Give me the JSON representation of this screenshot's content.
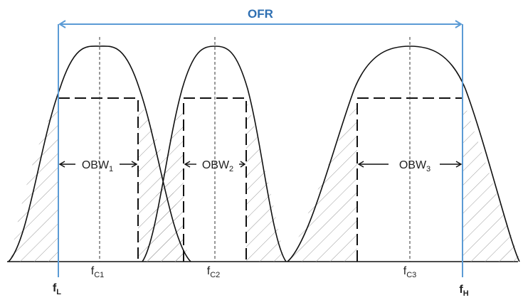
{
  "diagram": {
    "span_label": "OFR",
    "edge_low": {
      "main": "f",
      "sub": "L"
    },
    "edge_high": {
      "main": "f",
      "sub": "H"
    },
    "carriers": [
      {
        "center": {
          "main": "f",
          "sub": "C1"
        },
        "bandwidth": {
          "main": "OBW",
          "sub": "1"
        }
      },
      {
        "center": {
          "main": "f",
          "sub": "C2"
        },
        "bandwidth": {
          "main": "OBW",
          "sub": "2"
        }
      },
      {
        "center": {
          "main": "f",
          "sub": "C3"
        },
        "bandwidth": {
          "main": "OBW",
          "sub": "3"
        }
      }
    ],
    "colors": {
      "span": "#5b9bd5",
      "span_text": "#2e6fb2",
      "curve": "#111111",
      "hatch": "#9a9a9a"
    }
  }
}
